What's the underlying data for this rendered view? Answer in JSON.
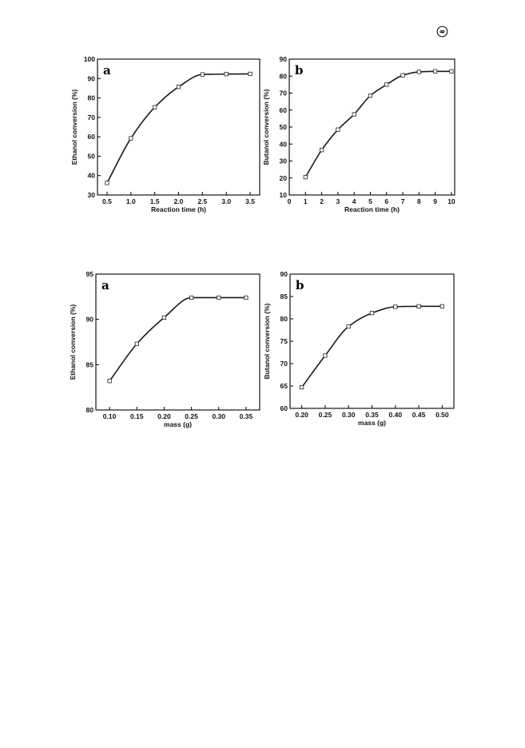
{
  "header": {
    "logo_icon": "journal-logo-icon"
  },
  "chart_data": [
    {
      "type": "line",
      "panel_label": "a",
      "xlabel": "Reaction time (h)",
      "ylabel": "Ethanol conversion (%)",
      "xlim": [
        0.3,
        3.7
      ],
      "ylim": [
        30,
        100
      ],
      "xticks": [
        0.5,
        1.0,
        1.5,
        2.0,
        2.5,
        3.0,
        3.5
      ],
      "xtick_labels": [
        "0.5",
        "1.0",
        "1.5",
        "2.0",
        "2.5",
        "3.0",
        "3.5"
      ],
      "yticks": [
        30,
        40,
        50,
        60,
        70,
        80,
        90,
        100
      ],
      "ytick_labels": [
        "30",
        "40",
        "50",
        "60",
        "70",
        "80",
        "90",
        "100"
      ],
      "x": [
        0.5,
        1.0,
        1.5,
        2.0,
        2.5,
        3.0,
        3.5
      ],
      "y": [
        36.2,
        59.2,
        75.2,
        85.7,
        92.1,
        92.3,
        92.4
      ],
      "marker": "open-square",
      "grid": false
    },
    {
      "type": "line",
      "panel_label": "b",
      "xlabel": "Reaction time (h)",
      "ylabel": "Butanol conversion (%)",
      "xlim": [
        0,
        10.2
      ],
      "ylim": [
        10,
        90
      ],
      "xticks": [
        0,
        1,
        2,
        3,
        4,
        5,
        6,
        7,
        8,
        9,
        10
      ],
      "xtick_labels": [
        "0",
        "1",
        "2",
        "3",
        "4",
        "5",
        "6",
        "7",
        "8",
        "9",
        "10"
      ],
      "yticks": [
        10,
        20,
        30,
        40,
        50,
        60,
        70,
        80,
        90
      ],
      "ytick_labels": [
        "10",
        "20",
        "30",
        "40",
        "50",
        "60",
        "70",
        "80",
        "90"
      ],
      "x": [
        1,
        2,
        3,
        4,
        5,
        6,
        7,
        8,
        9,
        10
      ],
      "y": [
        20.5,
        36.5,
        48.5,
        57.5,
        68.5,
        75.0,
        80.5,
        82.5,
        82.8,
        82.8
      ],
      "marker": "open-square",
      "grid": false
    },
    {
      "type": "line",
      "panel_label": "a",
      "xlabel": "mass (g)",
      "ylabel": "Ethanol conversion (%)",
      "xlim": [
        0.075,
        0.375
      ],
      "ylim": [
        80,
        95
      ],
      "xticks": [
        0.1,
        0.15,
        0.2,
        0.25,
        0.3,
        0.35
      ],
      "xtick_labels": [
        "0.10",
        "0.15",
        "0.20",
        "0.25",
        "0.30",
        "0.35"
      ],
      "yticks": [
        80,
        85,
        90,
        95
      ],
      "ytick_labels": [
        "80",
        "85",
        "90",
        "95"
      ],
      "x": [
        0.1,
        0.15,
        0.2,
        0.25,
        0.3,
        0.35
      ],
      "y": [
        83.2,
        87.3,
        90.2,
        92.4,
        92.4,
        92.4
      ],
      "marker": "open-square",
      "grid": false
    },
    {
      "type": "line",
      "panel_label": "b",
      "xlabel": "mass (g)",
      "ylabel": "Butanol conversion (%)",
      "xlim": [
        0.175,
        0.525
      ],
      "ylim": [
        60,
        90
      ],
      "xticks": [
        0.2,
        0.25,
        0.3,
        0.35,
        0.4,
        0.45,
        0.5
      ],
      "xtick_labels": [
        "0.20",
        "0.25",
        "0.30",
        "0.35",
        "0.40",
        "0.45",
        "0.50"
      ],
      "yticks": [
        60,
        65,
        70,
        75,
        80,
        85,
        90
      ],
      "ytick_labels": [
        "60",
        "65",
        "70",
        "75",
        "80",
        "85",
        "90"
      ],
      "x": [
        0.2,
        0.25,
        0.3,
        0.35,
        0.4,
        0.45,
        0.5
      ],
      "y": [
        64.7,
        71.8,
        78.3,
        81.3,
        82.7,
        82.8,
        82.8
      ],
      "marker": "open-square",
      "grid": false
    }
  ]
}
